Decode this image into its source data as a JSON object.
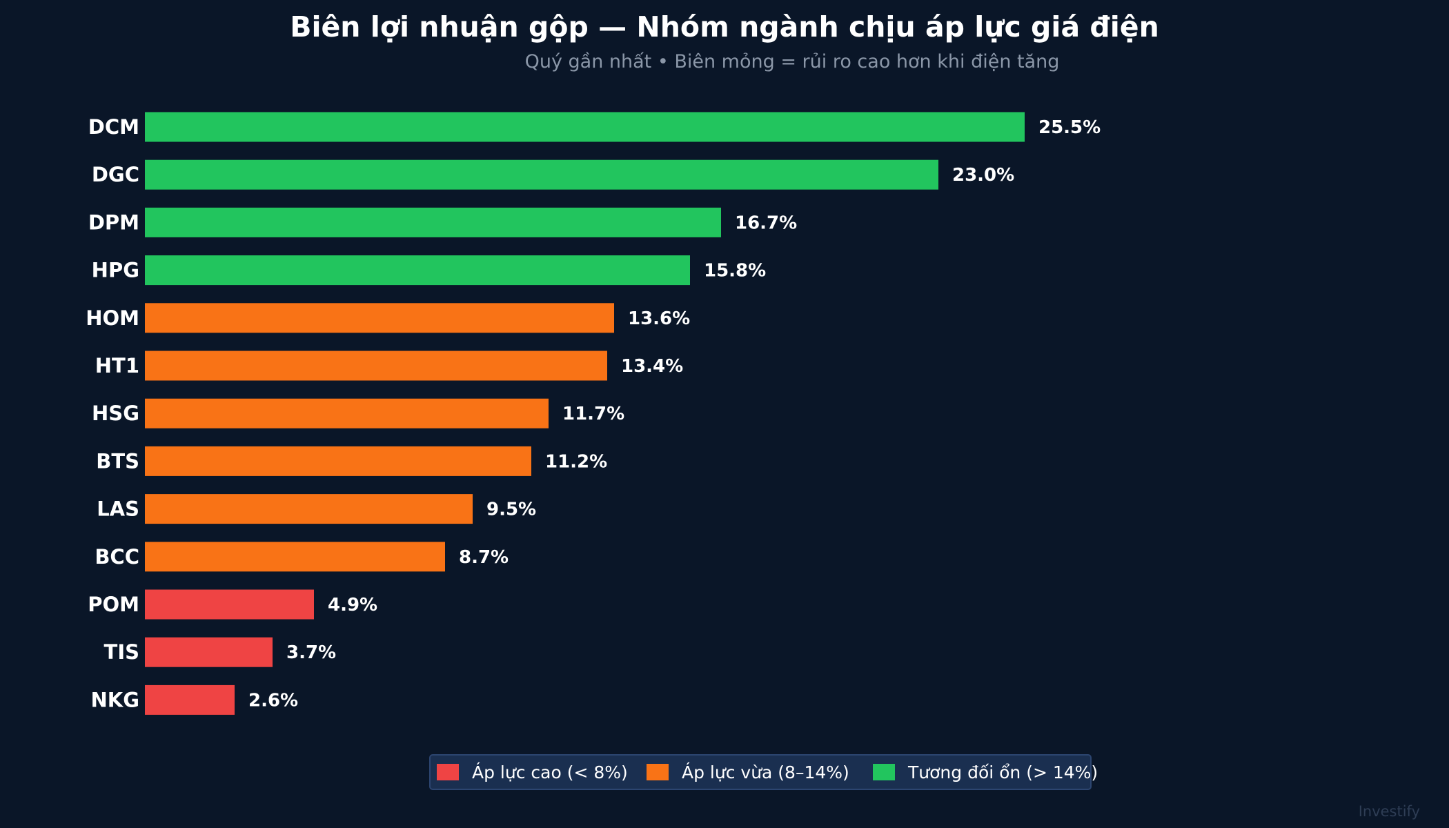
{
  "chart_data": {
    "type": "bar",
    "orientation": "horizontal",
    "title": "Biên lợi nhuận gộp — Nhóm ngành chịu áp lực giá điện",
    "subtitle": "Quý gần nhất  •  Biên mỏng = rủi ro cao hơn khi điện tăng",
    "categories": [
      "DCM",
      "DGC",
      "DPM",
      "HPG",
      "HOM",
      "HT1",
      "HSG",
      "BTS",
      "LAS",
      "BCC",
      "POM",
      "TIS",
      "NKG"
    ],
    "values": [
      25.5,
      23.0,
      16.7,
      15.8,
      13.6,
      13.4,
      11.7,
      11.2,
      9.5,
      8.7,
      4.9,
      3.7,
      2.6
    ],
    "value_labels": [
      "25.5%",
      "23.0%",
      "16.7%",
      "15.8%",
      "13.6%",
      "13.4%",
      "11.7%",
      "11.2%",
      "9.5%",
      "8.7%",
      "4.9%",
      "3.7%",
      "2.6%"
    ],
    "groups": [
      "stable",
      "stable",
      "stable",
      "stable",
      "medium",
      "medium",
      "medium",
      "medium",
      "medium",
      "medium",
      "high",
      "high",
      "high"
    ],
    "xlim": [
      0,
      36
    ],
    "grid": false,
    "legend_position": "bottom-center",
    "legend": [
      {
        "key": "high",
        "label": "Áp lực cao  (< 8%)",
        "color": "#ef4444"
      },
      {
        "key": "medium",
        "label": "Áp lực vừa  (8–14%)",
        "color": "#f97316"
      },
      {
        "key": "stable",
        "label": "Tương đối ổn  (> 14%)",
        "color": "#22c55e"
      }
    ]
  },
  "watermark": "Investify",
  "colors": {
    "background": "#0a1628",
    "legend_background": "#1a2f50"
  }
}
